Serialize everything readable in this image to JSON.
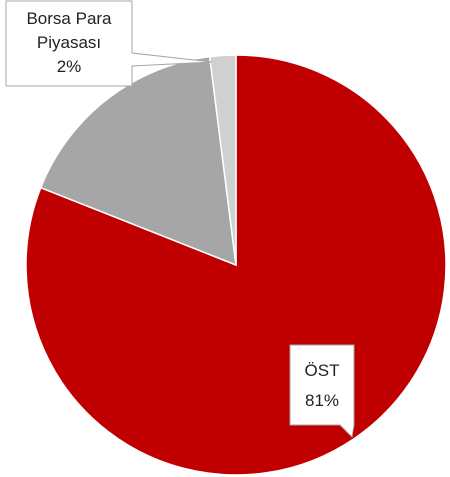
{
  "chart_data": {
    "type": "pie",
    "categories": [
      "ÖST",
      null,
      "Borsa Para Piyasası"
    ],
    "values": [
      81,
      17,
      2
    ],
    "value_labels": [
      "81%",
      null,
      "2%"
    ],
    "colors": [
      "#c00000",
      "#a6a6a6",
      "#d0d0d0"
    ]
  }
}
